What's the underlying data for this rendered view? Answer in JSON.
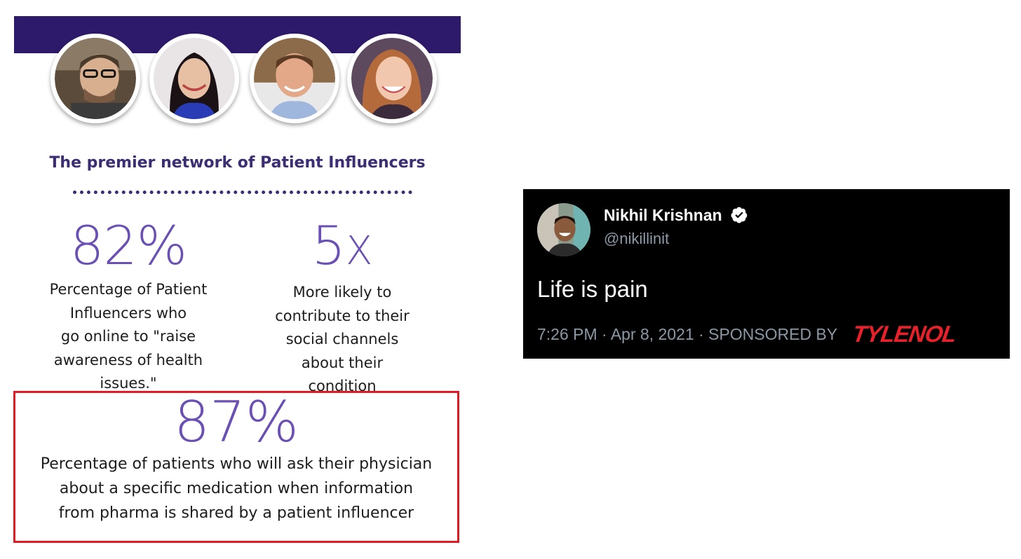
{
  "colors": {
    "band": "#2e1a6b",
    "title": "#3d2e73",
    "stat_number": "#6a4fb5",
    "highlight_border": "#e01b24",
    "tweet_bg": "#000000",
    "tweet_secondary": "#8b98a5",
    "verified": "#ffffff",
    "tylenol": "#e8202a"
  },
  "infographic": {
    "title": "The premier network of Patient Influencers",
    "avatars": [
      "influencer-1",
      "influencer-2",
      "influencer-3",
      "influencer-4"
    ],
    "stats": [
      {
        "value": "82%",
        "lines": [
          "Percentage of Patient",
          "Influencers who",
          "go online to \"raise",
          "awareness of health",
          "issues.\""
        ]
      },
      {
        "value_main": "5",
        "value_suffix": "X",
        "lines": [
          "More likely to",
          "contribute to their",
          "social channels",
          "about their",
          "condition"
        ]
      }
    ],
    "highlight": {
      "value": "87%",
      "lines": [
        "Percentage of patients who will ask their physician",
        "about a specific medication when information",
        "from pharma is shared by a patient influencer"
      ]
    }
  },
  "tweet": {
    "name": "Nikhil Krishnan",
    "handle": "@nikillinit",
    "text": "Life is pain",
    "meta": "7:26 PM · Apr 8, 2021 · SPONSORED BY",
    "sponsor_logo": "TYLENOL",
    "icons": {
      "verified": "verified-badge-icon"
    }
  }
}
